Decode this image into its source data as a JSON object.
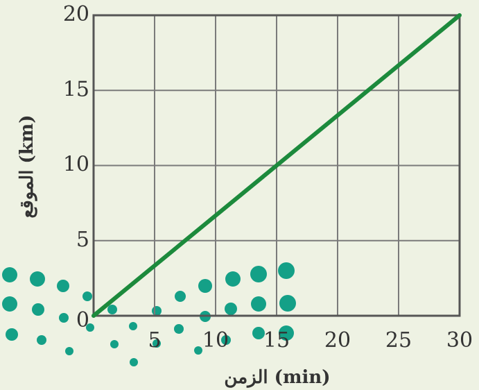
{
  "chart_data": {
    "type": "line",
    "x_label": "الزمن (min)",
    "y_label": "الموقع (km)",
    "x": [
      0,
      30
    ],
    "series": [
      {
        "color": "#1c8a3c",
        "values": [
          0,
          20
        ]
      }
    ],
    "xlim": [
      0,
      30
    ],
    "xticks": [
      0,
      5,
      10,
      15,
      20,
      25,
      30
    ],
    "ylim": [
      0,
      20
    ],
    "yticks": [
      0,
      5,
      10,
      15,
      20
    ],
    "grid": true
  }
}
